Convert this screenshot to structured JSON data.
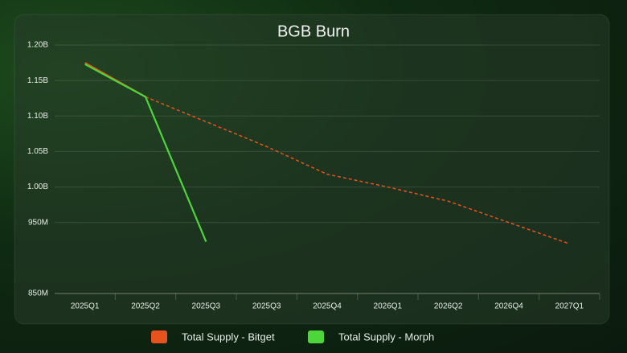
{
  "chart_data": {
    "type": "line",
    "title": "BGB Burn",
    "categories": [
      "2025Q1",
      "2025Q2",
      "2025Q3",
      "2025Q3",
      "2025Q4",
      "2026Q1",
      "2026Q2",
      "2026Q4",
      "2027Q1"
    ],
    "series": [
      {
        "name": "Total Supply - Bitget",
        "color": "#e8521f",
        "dash_from": 1,
        "values": [
          1175000000,
          1127000000,
          1092000000,
          1057000000,
          1018000000,
          1000000000,
          980000000,
          950000000,
          920000000
        ]
      },
      {
        "name": "Total Supply - Morph",
        "color": "#4cd63a",
        "values": [
          1173000000,
          1127000000,
          923000000,
          null,
          null,
          null,
          null,
          null,
          null
        ]
      }
    ],
    "ylim": [
      850000000,
      1200000000
    ],
    "yticks": [
      {
        "value": 850000000,
        "label": "850M"
      },
      {
        "value": 950000000,
        "label": "950M"
      },
      {
        "value": 1000000000,
        "label": "1.00B"
      },
      {
        "value": 1050000000,
        "label": "1.05B"
      },
      {
        "value": 1100000000,
        "label": "1.10B"
      },
      {
        "value": 1150000000,
        "label": "1.15B"
      },
      {
        "value": 1200000000,
        "label": "1.20B"
      }
    ],
    "grid": true
  }
}
